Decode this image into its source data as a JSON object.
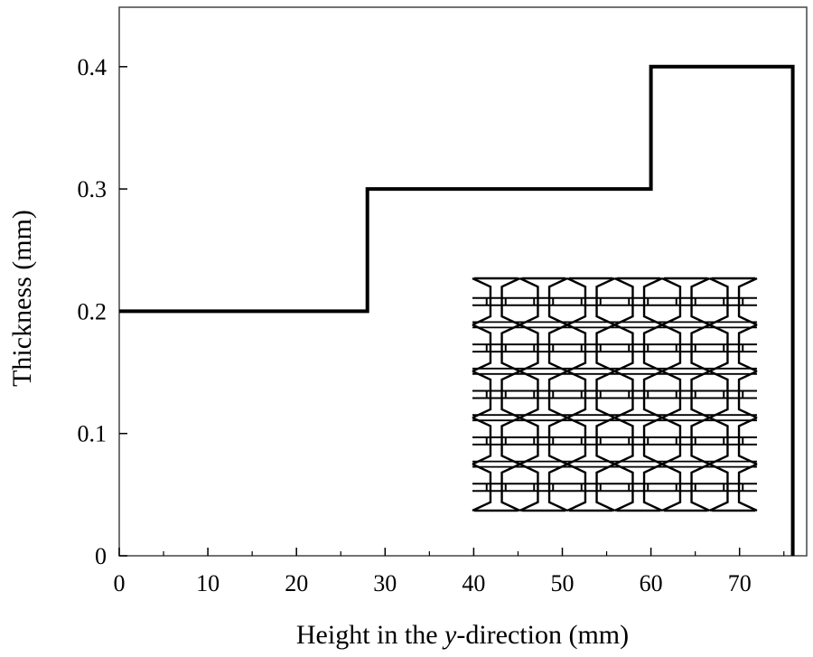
{
  "chart_data": {
    "type": "line",
    "title": "",
    "xlabel": "Height in the y-direction (mm)",
    "xlabel_parts": [
      "Height in the ",
      "y",
      "-direction (mm)"
    ],
    "ylabel": "Thickness (mm)",
    "xlim": [
      0,
      77
    ],
    "ylim": [
      0,
      0.44
    ],
    "x_ticks": [
      0,
      10,
      20,
      30,
      40,
      50,
      60,
      70
    ],
    "x_tick_labels": [
      "0",
      "10",
      "20",
      "30",
      "40",
      "50",
      "60",
      "70"
    ],
    "x_minor_ticks": [
      5,
      15,
      25,
      35,
      45,
      55,
      65,
      75
    ],
    "y_ticks": [
      0,
      0.1,
      0.2,
      0.3,
      0.4
    ],
    "y_tick_labels": [
      "0",
      "0.1",
      "0.2",
      "0.3",
      "0.4"
    ],
    "grid": false,
    "legend": "none",
    "series": [
      {
        "style": "step",
        "color": "#000000",
        "x": [
          0,
          28,
          28,
          60,
          60,
          76,
          76
        ],
        "y": [
          0.2,
          0.2,
          0.3,
          0.3,
          0.4,
          0.4,
          0
        ]
      }
    ],
    "inset": {
      "description_icon": "auxetic-lattice-icon",
      "columns": 6,
      "rows": 5
    }
  }
}
